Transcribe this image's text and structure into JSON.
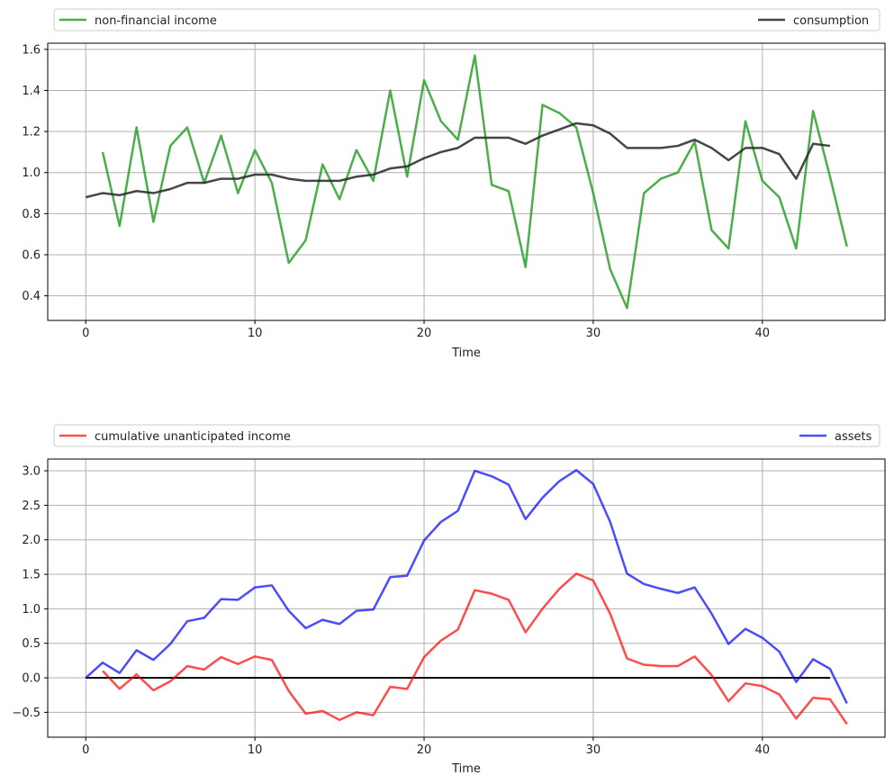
{
  "chart_data": [
    {
      "type": "line",
      "xlabel": "Time",
      "ylabel": "",
      "xlim": [
        -2.25,
        47.25
      ],
      "ylim": [
        0.28,
        1.63
      ],
      "xticks": [
        0,
        10,
        20,
        30,
        40
      ],
      "yticks": [
        0.4,
        0.6,
        0.8,
        1.0,
        1.2,
        1.4,
        1.6
      ],
      "grid": true,
      "legend_placement": "above",
      "series": [
        {
          "name": "non-financial income",
          "color": "#2ca02c",
          "x": [
            1,
            2,
            3,
            4,
            5,
            6,
            7,
            8,
            9,
            10,
            11,
            12,
            13,
            14,
            15,
            16,
            17,
            18,
            19,
            20,
            21,
            22,
            23,
            24,
            25,
            26,
            27,
            28,
            29,
            30,
            31,
            32,
            33,
            34,
            35,
            36,
            37,
            38,
            39,
            40,
            41,
            42,
            43,
            44,
            45
          ],
          "values": [
            1.1,
            0.74,
            1.22,
            0.76,
            1.13,
            1.22,
            0.95,
            1.18,
            0.9,
            1.11,
            0.95,
            0.56,
            0.67,
            1.04,
            0.87,
            1.11,
            0.96,
            1.4,
            0.98,
            1.45,
            1.25,
            1.16,
            1.57,
            0.94,
            0.91,
            0.54,
            1.33,
            1.29,
            1.22,
            0.9,
            0.53,
            0.34,
            0.9,
            0.97,
            1.0,
            1.15,
            0.72,
            0.63,
            1.25,
            0.96,
            0.88,
            0.63,
            1.3,
            0.98,
            0.64
          ]
        },
        {
          "name": "consumption",
          "color": "#262626",
          "x": [
            0,
            1,
            2,
            3,
            4,
            5,
            6,
            7,
            8,
            9,
            10,
            11,
            12,
            13,
            14,
            15,
            16,
            17,
            18,
            19,
            20,
            21,
            22,
            23,
            24,
            25,
            26,
            27,
            28,
            29,
            30,
            31,
            32,
            33,
            34,
            35,
            36,
            37,
            38,
            39,
            40,
            41,
            42,
            43,
            44
          ],
          "values": [
            0.88,
            0.9,
            0.89,
            0.91,
            0.9,
            0.92,
            0.95,
            0.95,
            0.97,
            0.97,
            0.99,
            0.99,
            0.97,
            0.96,
            0.96,
            0.96,
            0.98,
            0.99,
            1.02,
            1.03,
            1.07,
            1.1,
            1.12,
            1.17,
            1.17,
            1.17,
            1.14,
            1.18,
            1.21,
            1.24,
            1.23,
            1.19,
            1.12,
            1.12,
            1.12,
            1.13,
            1.16,
            1.12,
            1.06,
            1.12,
            1.12,
            1.09,
            0.97,
            1.14,
            1.13
          ]
        }
      ]
    },
    {
      "type": "line",
      "xlabel": "Time",
      "ylabel": "",
      "xlim": [
        -2.25,
        47.25
      ],
      "ylim": [
        -0.86,
        3.17
      ],
      "xticks": [
        0,
        10,
        20,
        30,
        40
      ],
      "yticks": [
        -0.5,
        0.0,
        0.5,
        1.0,
        1.5,
        2.0,
        2.5,
        3.0
      ],
      "grid": true,
      "legend_placement": "above",
      "hline": {
        "y": 0,
        "x": [
          0,
          44
        ],
        "color": "#000000"
      },
      "series": [
        {
          "name": "cumulative unanticipated income",
          "color": "#ff0000",
          "x": [
            1,
            2,
            3,
            4,
            5,
            6,
            7,
            8,
            9,
            10,
            11,
            12,
            13,
            14,
            15,
            16,
            17,
            18,
            19,
            20,
            21,
            22,
            23,
            24,
            25,
            26,
            27,
            28,
            29,
            30,
            31,
            32,
            33,
            34,
            35,
            36,
            37,
            38,
            39,
            40,
            41,
            42,
            43,
            44,
            45
          ],
          "values": [
            0.1,
            -0.16,
            0.05,
            -0.18,
            -0.05,
            0.17,
            0.12,
            0.3,
            0.2,
            0.31,
            0.26,
            -0.19,
            -0.52,
            -0.48,
            -0.61,
            -0.5,
            -0.54,
            -0.13,
            -0.16,
            0.3,
            0.54,
            0.7,
            1.27,
            1.22,
            1.13,
            0.66,
            1.0,
            1.29,
            1.51,
            1.41,
            0.93,
            0.28,
            0.19,
            0.17,
            0.17,
            0.31,
            0.04,
            -0.34,
            -0.08,
            -0.12,
            -0.24,
            -0.59,
            -0.29,
            -0.31,
            -0.67
          ]
        },
        {
          "name": "assets",
          "color": "#0000ff",
          "x": [
            0,
            1,
            2,
            3,
            4,
            5,
            6,
            7,
            8,
            9,
            10,
            11,
            12,
            13,
            14,
            15,
            16,
            17,
            18,
            19,
            20,
            21,
            22,
            23,
            24,
            25,
            26,
            27,
            28,
            29,
            30,
            31,
            32,
            33,
            34,
            35,
            36,
            37,
            38,
            39,
            40,
            41,
            42,
            43,
            44,
            45
          ],
          "values": [
            0.0,
            0.22,
            0.07,
            0.4,
            0.26,
            0.49,
            0.82,
            0.87,
            1.14,
            1.13,
            1.31,
            1.34,
            0.97,
            0.72,
            0.84,
            0.78,
            0.97,
            0.99,
            1.46,
            1.48,
            1.99,
            2.26,
            2.42,
            3.0,
            2.92,
            2.8,
            2.3,
            2.61,
            2.85,
            3.01,
            2.81,
            2.26,
            1.51,
            1.36,
            1.29,
            1.23,
            1.31,
            0.93,
            0.49,
            0.71,
            0.58,
            0.38,
            -0.06,
            0.27,
            0.13,
            -0.37
          ]
        }
      ]
    }
  ]
}
